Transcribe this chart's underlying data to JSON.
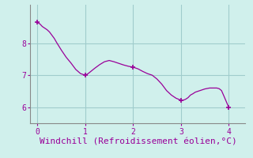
{
  "x": [
    0.0,
    0.05,
    0.1,
    0.15,
    0.2,
    0.25,
    0.3,
    0.35,
    0.4,
    0.5,
    0.6,
    0.7,
    0.8,
    0.9,
    1.0,
    1.05,
    1.1,
    1.2,
    1.3,
    1.4,
    1.5,
    1.6,
    1.7,
    1.8,
    1.9,
    2.0,
    2.1,
    2.2,
    2.3,
    2.4,
    2.5,
    2.6,
    2.7,
    2.8,
    2.9,
    3.0,
    3.05,
    3.1,
    3.15,
    3.2,
    3.25,
    3.3,
    3.4,
    3.5,
    3.6,
    3.7,
    3.75,
    3.8,
    3.85,
    3.9,
    4.0
  ],
  "y": [
    8.65,
    8.6,
    8.52,
    8.47,
    8.42,
    8.35,
    8.25,
    8.15,
    8.02,
    7.78,
    7.56,
    7.38,
    7.18,
    7.05,
    7.0,
    7.04,
    7.1,
    7.22,
    7.33,
    7.42,
    7.46,
    7.42,
    7.37,
    7.32,
    7.28,
    7.25,
    7.2,
    7.12,
    7.05,
    7.0,
    6.88,
    6.72,
    6.52,
    6.38,
    6.28,
    6.22,
    6.22,
    6.25,
    6.3,
    6.38,
    6.42,
    6.47,
    6.52,
    6.57,
    6.6,
    6.6,
    6.6,
    6.58,
    6.52,
    6.35,
    6.0
  ],
  "marker_x": [
    0.0,
    1.0,
    2.0,
    3.0,
    4.0
  ],
  "marker_y": [
    8.65,
    7.0,
    7.25,
    6.22,
    6.0
  ],
  "line_color": "#990099",
  "marker_color": "#990099",
  "bg_color": "#d0f0ec",
  "grid_color": "#a0cccc",
  "xlabel": "Windchill (Refroidissement éolien,°C)",
  "xlabel_color": "#990099",
  "tick_color": "#990099",
  "axis_color": "#888888",
  "xlim": [
    -0.15,
    4.35
  ],
  "ylim": [
    5.5,
    9.2
  ],
  "xticks": [
    0,
    1,
    2,
    3,
    4
  ],
  "yticks": [
    6,
    7,
    8
  ],
  "xlabel_fontsize": 8
}
